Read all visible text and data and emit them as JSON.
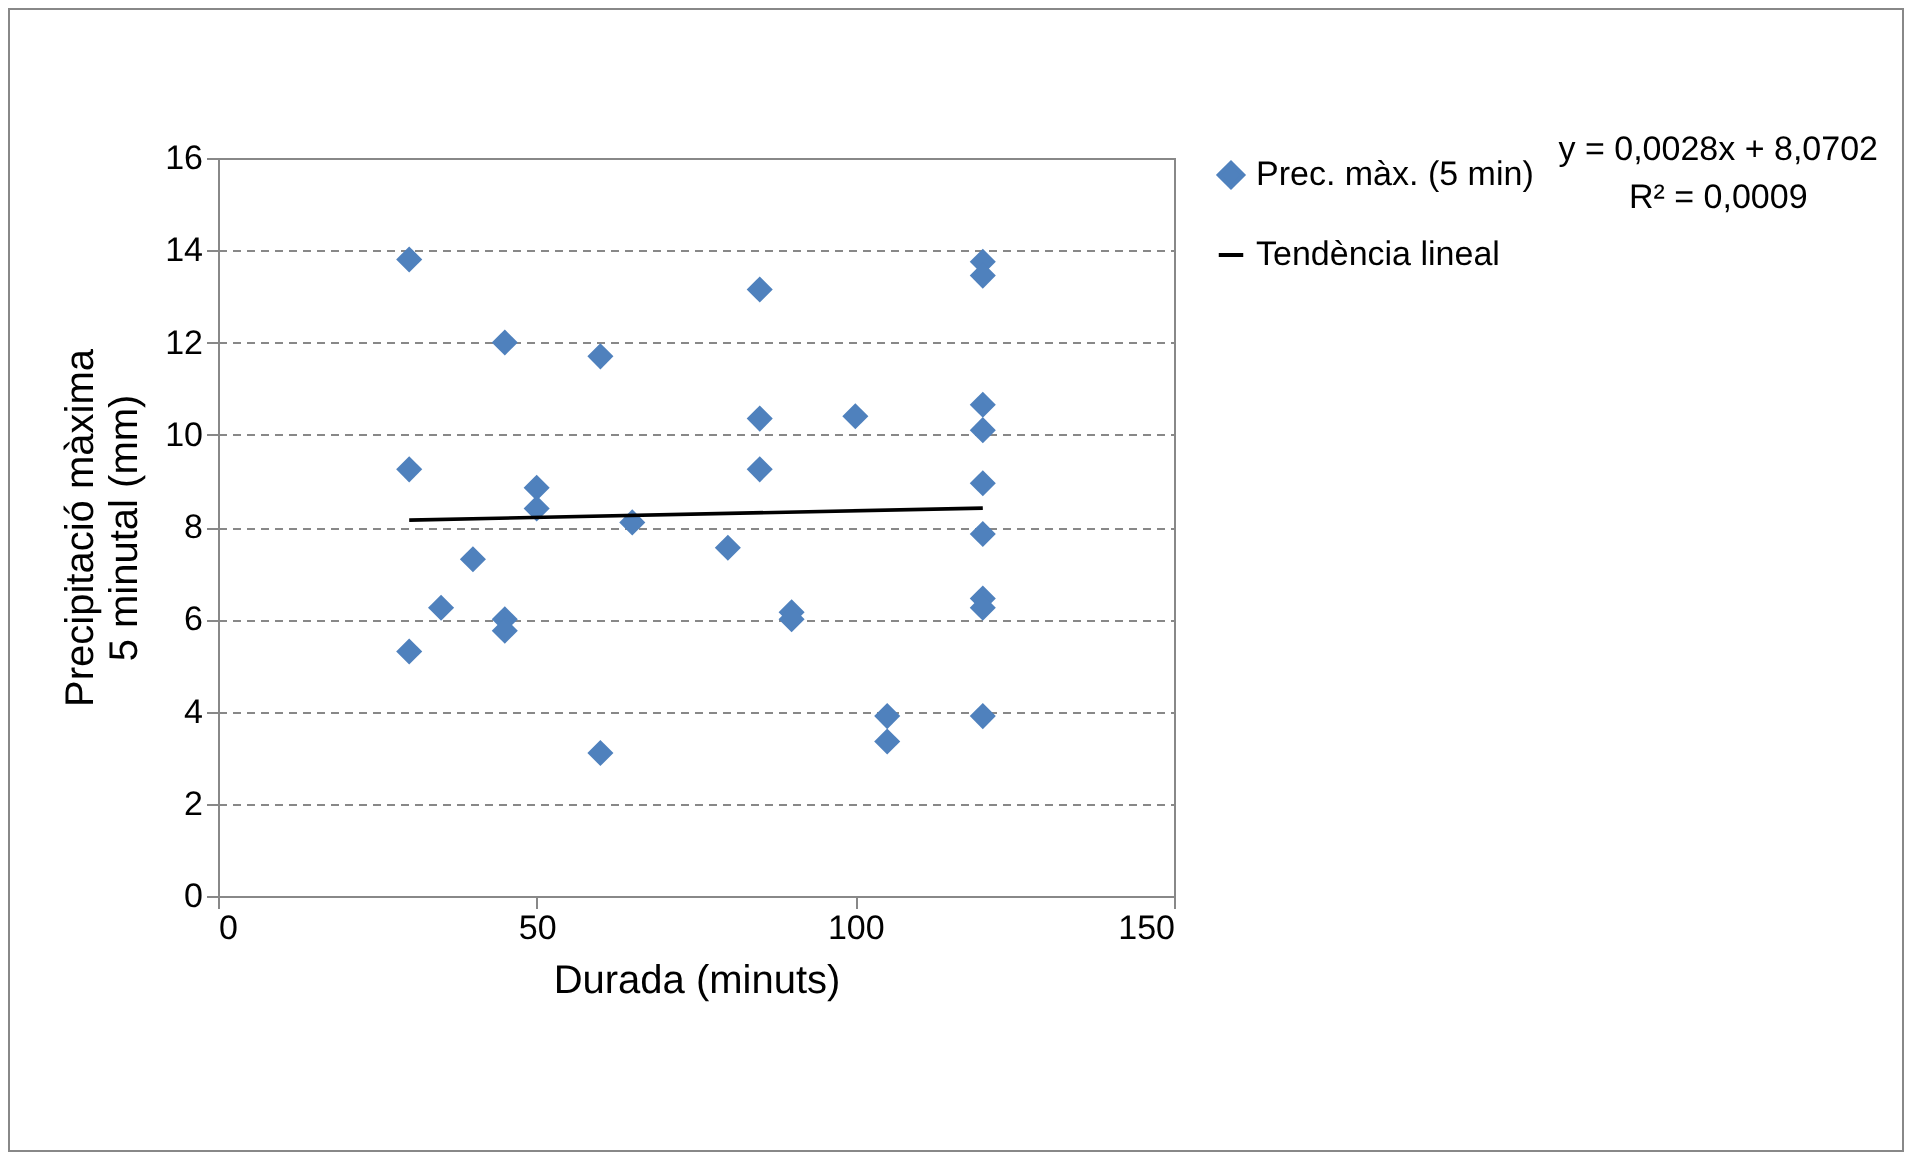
{
  "chart_data": {
    "type": "scatter",
    "xlabel": "Durada (minuts)",
    "ylabel": "Precipitació màxima\n5 minutal (mm)",
    "xlim": [
      0,
      150
    ],
    "xticks": [
      0,
      50,
      100,
      150
    ],
    "ylim": [
      0,
      16
    ],
    "yticks": [
      0,
      2,
      4,
      6,
      8,
      10,
      12,
      14,
      16
    ],
    "grid": "y",
    "legend": "right",
    "annotations": [
      "y = 0,0028x + 8,0702",
      "R² = 0,0009"
    ],
    "series": [
      {
        "name": "Prec. màx. (5 min)",
        "color": "#4f81bd",
        "marker": "diamond",
        "x": [
          30,
          30,
          30,
          35,
          40,
          45,
          45,
          45,
          50,
          50,
          60,
          60,
          65,
          80,
          85,
          85,
          85,
          90,
          90,
          100,
          105,
          105,
          120,
          120,
          120,
          120,
          120,
          120,
          120,
          120,
          120
        ],
        "values": [
          13.8,
          9.25,
          5.3,
          6.25,
          7.3,
          12,
          6.0,
          5.75,
          8.85,
          8.4,
          11.7,
          3.1,
          8.1,
          7.55,
          13.15,
          10.35,
          9.25,
          6.15,
          6.0,
          10.4,
          3.9,
          3.35,
          13.75,
          13.45,
          10.65,
          10.1,
          8.95,
          7.85,
          6.45,
          6.25,
          3.9
        ]
      },
      {
        "name": "Tendència lineal",
        "type": "line",
        "marker": "none",
        "color": "#000000",
        "x": [
          30,
          120
        ],
        "values": [
          8.15,
          8.41
        ]
      }
    ]
  }
}
